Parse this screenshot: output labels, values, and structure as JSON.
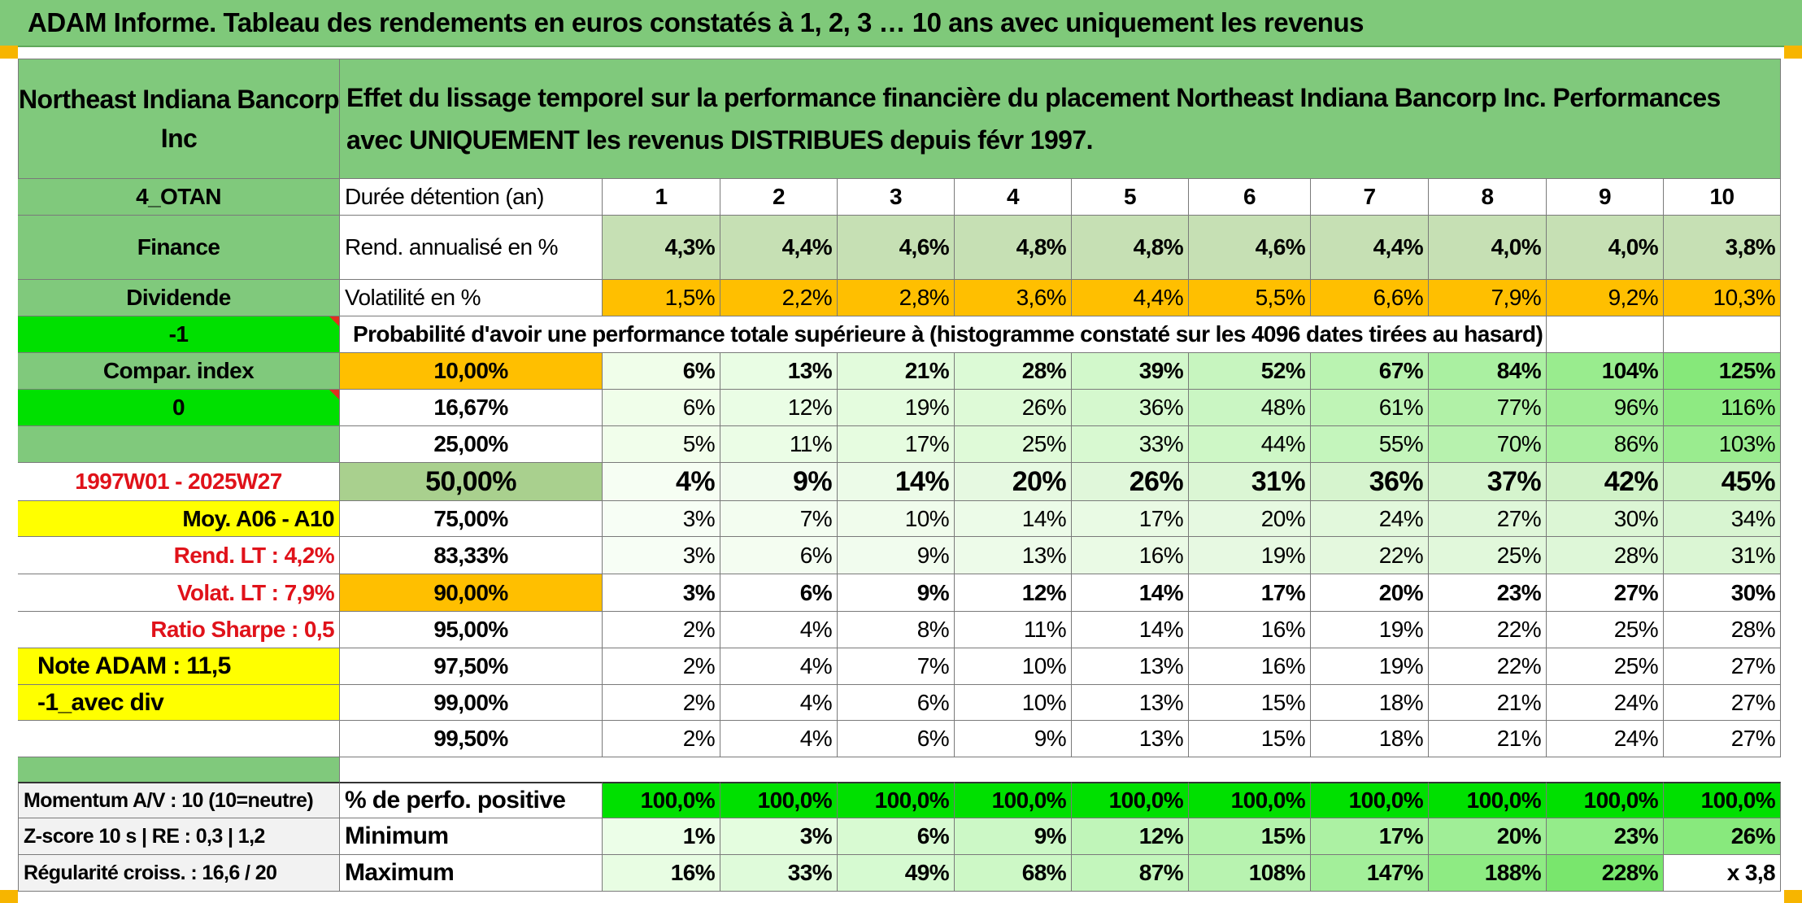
{
  "title": "ADAM Informe. Tableau des rendements en euros constatés à 1, 2, 3 … 10 ans avec uniquement les revenus",
  "header": {
    "company": "Northeast Indiana Bancorp Inc",
    "description": "Effet du lissage temporel sur la performance financière du placement Northeast Indiana Bancorp Inc. Performances avec UNIQUEMENT les revenus DISTRIBUES depuis févr 1997."
  },
  "left": {
    "code": "4_OTAN",
    "sector": "Finance",
    "type": "Dividende",
    "flag1": "-1",
    "compar_index": "Compar. index",
    "flag2": "0",
    "period": "1997W01 - 2025W27",
    "moy": "Moy. A06 - A10",
    "rend_lt": "Rend. LT :    4,2%",
    "volat_lt": "Volat. LT :    7,9%",
    "sharpe": "Ratio Sharpe :    0,5",
    "note": "Note ADAM : 11,5",
    "variant": "-1_avec div",
    "momentum": "Momentum A/V : 10 (10=neutre)",
    "zscore": "Z-score 10 s | RE : 0,3 | 1,2",
    "regularite": "Régularité croiss. : 16,6 / 20"
  },
  "table": {
    "duree_label": "Durée détention (an)",
    "years": [
      "1",
      "2",
      "3",
      "4",
      "5",
      "6",
      "7",
      "8",
      "9",
      "10"
    ],
    "rend_label": "Rend. annualisé en %",
    "rend": [
      "4,3%",
      "4,4%",
      "4,6%",
      "4,8%",
      "4,8%",
      "4,6%",
      "4,4%",
      "4,0%",
      "4,0%",
      "3,8%"
    ],
    "vol_label": "Volatilité en %",
    "vol": [
      "1,5%",
      "2,2%",
      "2,8%",
      "3,6%",
      "4,4%",
      "5,5%",
      "6,6%",
      "7,9%",
      "9,2%",
      "10,3%"
    ],
    "prob_label": "Probabilité d'avoir une performance totale supérieure à (histogramme constaté sur les 4096 dates tirées au hasard)",
    "percentiles": [
      {
        "p": "10,00%",
        "v": [
          "6%",
          "13%",
          "21%",
          "28%",
          "39%",
          "52%",
          "67%",
          "84%",
          "104%",
          "125%"
        ]
      },
      {
        "p": "16,67%",
        "v": [
          "6%",
          "12%",
          "19%",
          "26%",
          "36%",
          "48%",
          "61%",
          "77%",
          "96%",
          "116%"
        ]
      },
      {
        "p": "25,00%",
        "v": [
          "5%",
          "11%",
          "17%",
          "25%",
          "33%",
          "44%",
          "55%",
          "70%",
          "86%",
          "103%"
        ]
      },
      {
        "p": "50,00%",
        "v": [
          "4%",
          "9%",
          "14%",
          "20%",
          "26%",
          "31%",
          "36%",
          "37%",
          "42%",
          "45%"
        ]
      },
      {
        "p": "75,00%",
        "v": [
          "3%",
          "7%",
          "10%",
          "14%",
          "17%",
          "20%",
          "24%",
          "27%",
          "30%",
          "34%"
        ]
      },
      {
        "p": "83,33%",
        "v": [
          "3%",
          "6%",
          "9%",
          "13%",
          "16%",
          "19%",
          "22%",
          "25%",
          "28%",
          "31%"
        ]
      },
      {
        "p": "90,00%",
        "v": [
          "3%",
          "6%",
          "9%",
          "12%",
          "14%",
          "17%",
          "20%",
          "23%",
          "27%",
          "30%"
        ]
      },
      {
        "p": "95,00%",
        "v": [
          "2%",
          "4%",
          "8%",
          "11%",
          "14%",
          "16%",
          "19%",
          "22%",
          "25%",
          "28%"
        ]
      },
      {
        "p": "97,50%",
        "v": [
          "2%",
          "4%",
          "7%",
          "10%",
          "13%",
          "16%",
          "19%",
          "22%",
          "25%",
          "27%"
        ]
      },
      {
        "p": "99,00%",
        "v": [
          "2%",
          "4%",
          "6%",
          "10%",
          "13%",
          "15%",
          "18%",
          "21%",
          "24%",
          "27%"
        ]
      },
      {
        "p": "99,50%",
        "v": [
          "2%",
          "4%",
          "6%",
          "9%",
          "13%",
          "15%",
          "18%",
          "21%",
          "24%",
          "27%"
        ]
      }
    ],
    "pos_label": "% de perfo. positive",
    "pos": [
      "100,0%",
      "100,0%",
      "100,0%",
      "100,0%",
      "100,0%",
      "100,0%",
      "100,0%",
      "100,0%",
      "100,0%",
      "100,0%"
    ],
    "min_label": "Minimum",
    "min": [
      "1%",
      "3%",
      "6%",
      "9%",
      "12%",
      "15%",
      "17%",
      "20%",
      "23%",
      "26%"
    ],
    "max_label": "Maximum",
    "max": [
      "16%",
      "33%",
      "49%",
      "68%",
      "87%",
      "108%",
      "147%",
      "188%",
      "228%",
      "x 3,8"
    ]
  },
  "colors": {
    "header_green": "#80c97c",
    "bright_green": "#00e000",
    "yellow": "#ffff00",
    "orange": "#ffbf00",
    "red_text": "#e0121a"
  }
}
